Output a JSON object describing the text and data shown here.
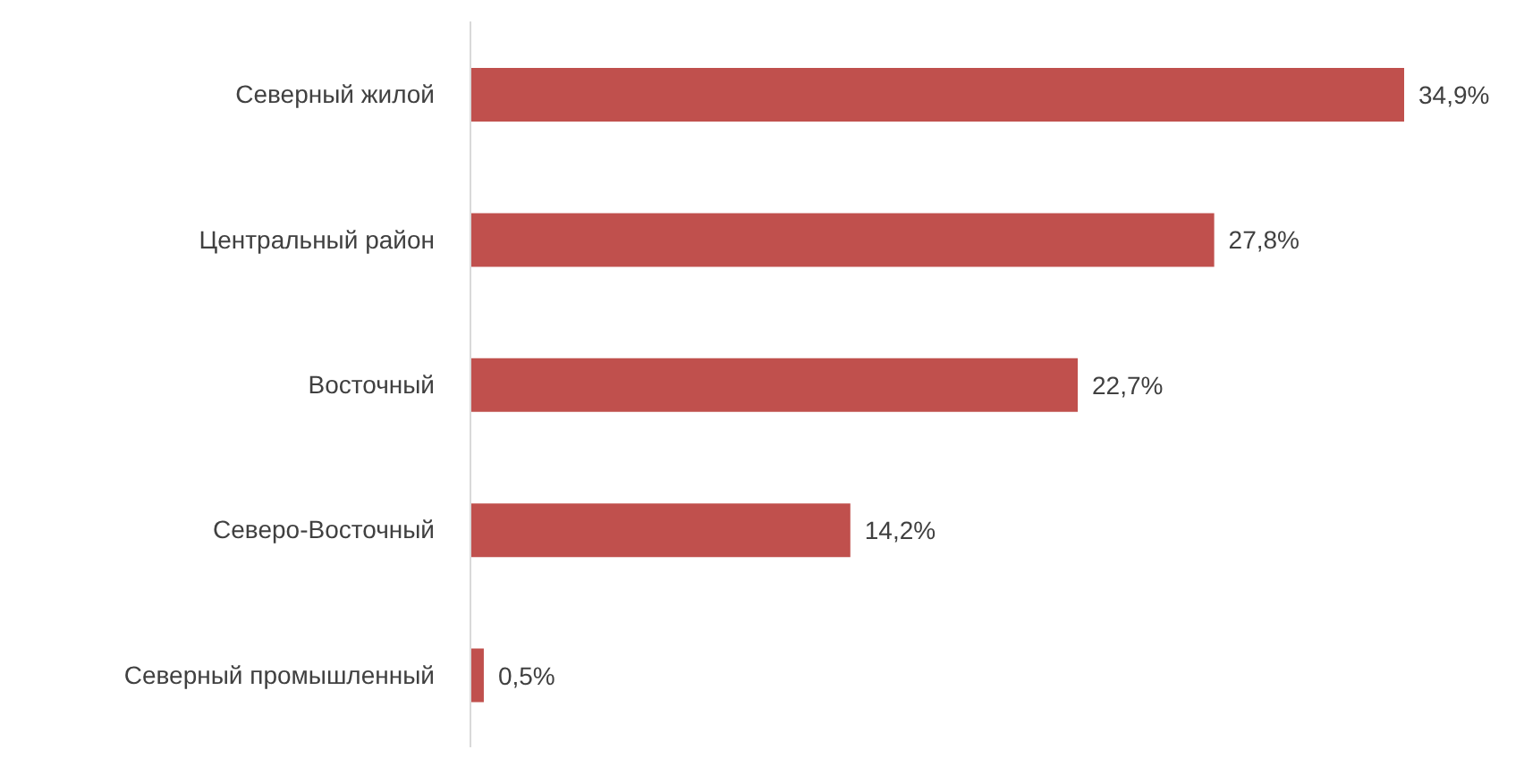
{
  "chart_data": {
    "type": "bar",
    "orientation": "horizontal",
    "categories": [
      "Северный жилой",
      "Центральный район",
      "Восточный",
      "Северо-Восточный",
      "Северный промышленный"
    ],
    "values": [
      34.9,
      27.8,
      22.7,
      14.2,
      0.5
    ],
    "value_labels": [
      "34,9%",
      "27,8%",
      "22,7%",
      "14,2%",
      "0,5%"
    ],
    "color": "#c0504d",
    "grid": false,
    "legend": false
  }
}
